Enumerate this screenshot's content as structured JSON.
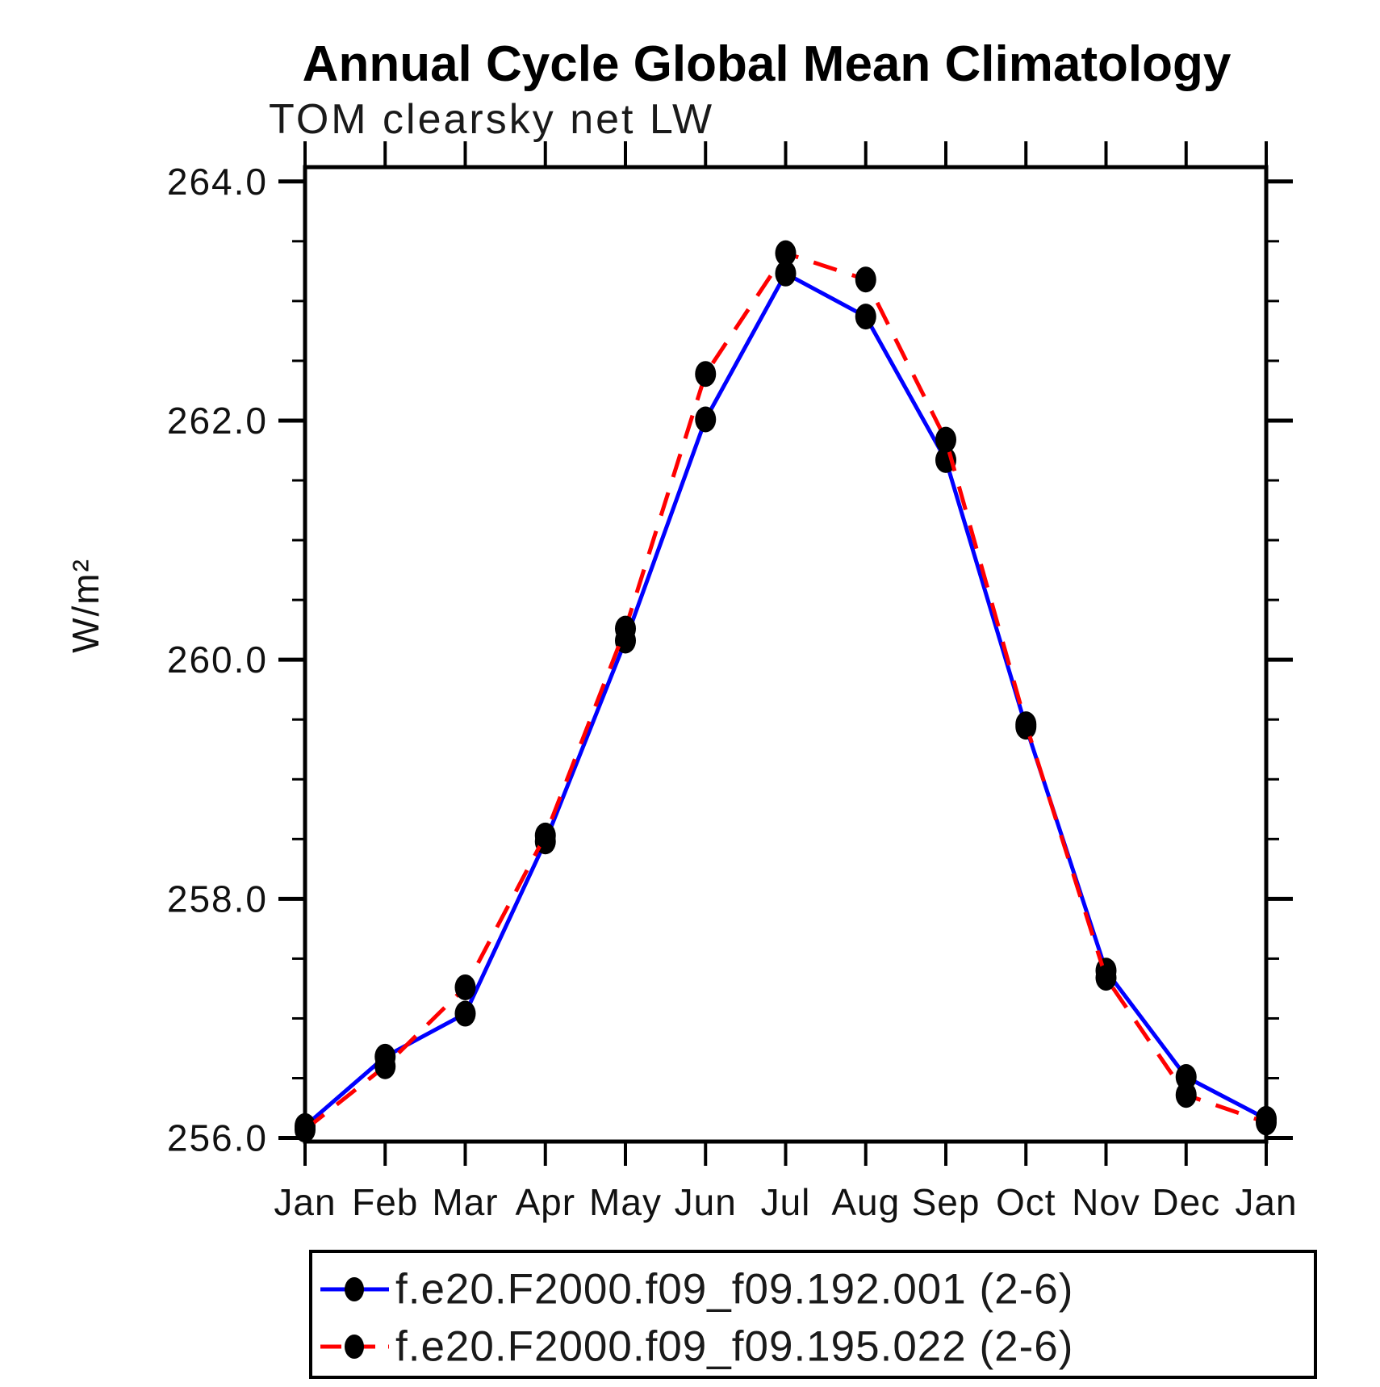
{
  "chart_data": {
    "type": "line",
    "title": "Annual Cycle Global Mean Climatology",
    "subtitle": "TOM clearsky net LW",
    "ylabel": "W/m²",
    "xlabel": "",
    "x_categories": [
      "Jan",
      "Feb",
      "Mar",
      "Apr",
      "May",
      "Jun",
      "Jul",
      "Aug",
      "Sep",
      "Oct",
      "Nov",
      "Dec",
      "Jan"
    ],
    "ylim": [
      256.0,
      264.0
    ],
    "ytick_major": [
      256.0,
      258.0,
      260.0,
      262.0,
      264.0
    ],
    "ytick_labels": [
      "256.0",
      "258.0",
      "260.0",
      "262.0",
      "264.0"
    ],
    "ytick_minor_step": 0.5,
    "grid": false,
    "legend_position": "bottom",
    "frame_color": "#000000",
    "marker_color": "#000000",
    "series": [
      {
        "name": "f.e20.F2000.f09_f09.192.001 (2-6)",
        "color": "#0000ff",
        "style": "solid",
        "marker": "black-dot",
        "values": [
          256.1,
          256.68,
          257.04,
          258.48,
          260.16,
          262.01,
          263.23,
          262.87,
          261.67,
          259.44,
          257.4,
          256.51,
          256.16
        ]
      },
      {
        "name": "f.e20.F2000.f09_f09.195.022 (2-6)",
        "color": "#ff0000",
        "style": "dashed",
        "marker": "black-dot",
        "values": [
          256.07,
          256.6,
          257.26,
          258.53,
          260.26,
          262.39,
          263.4,
          263.18,
          261.84,
          259.46,
          257.34,
          256.36,
          256.13
        ]
      }
    ]
  }
}
